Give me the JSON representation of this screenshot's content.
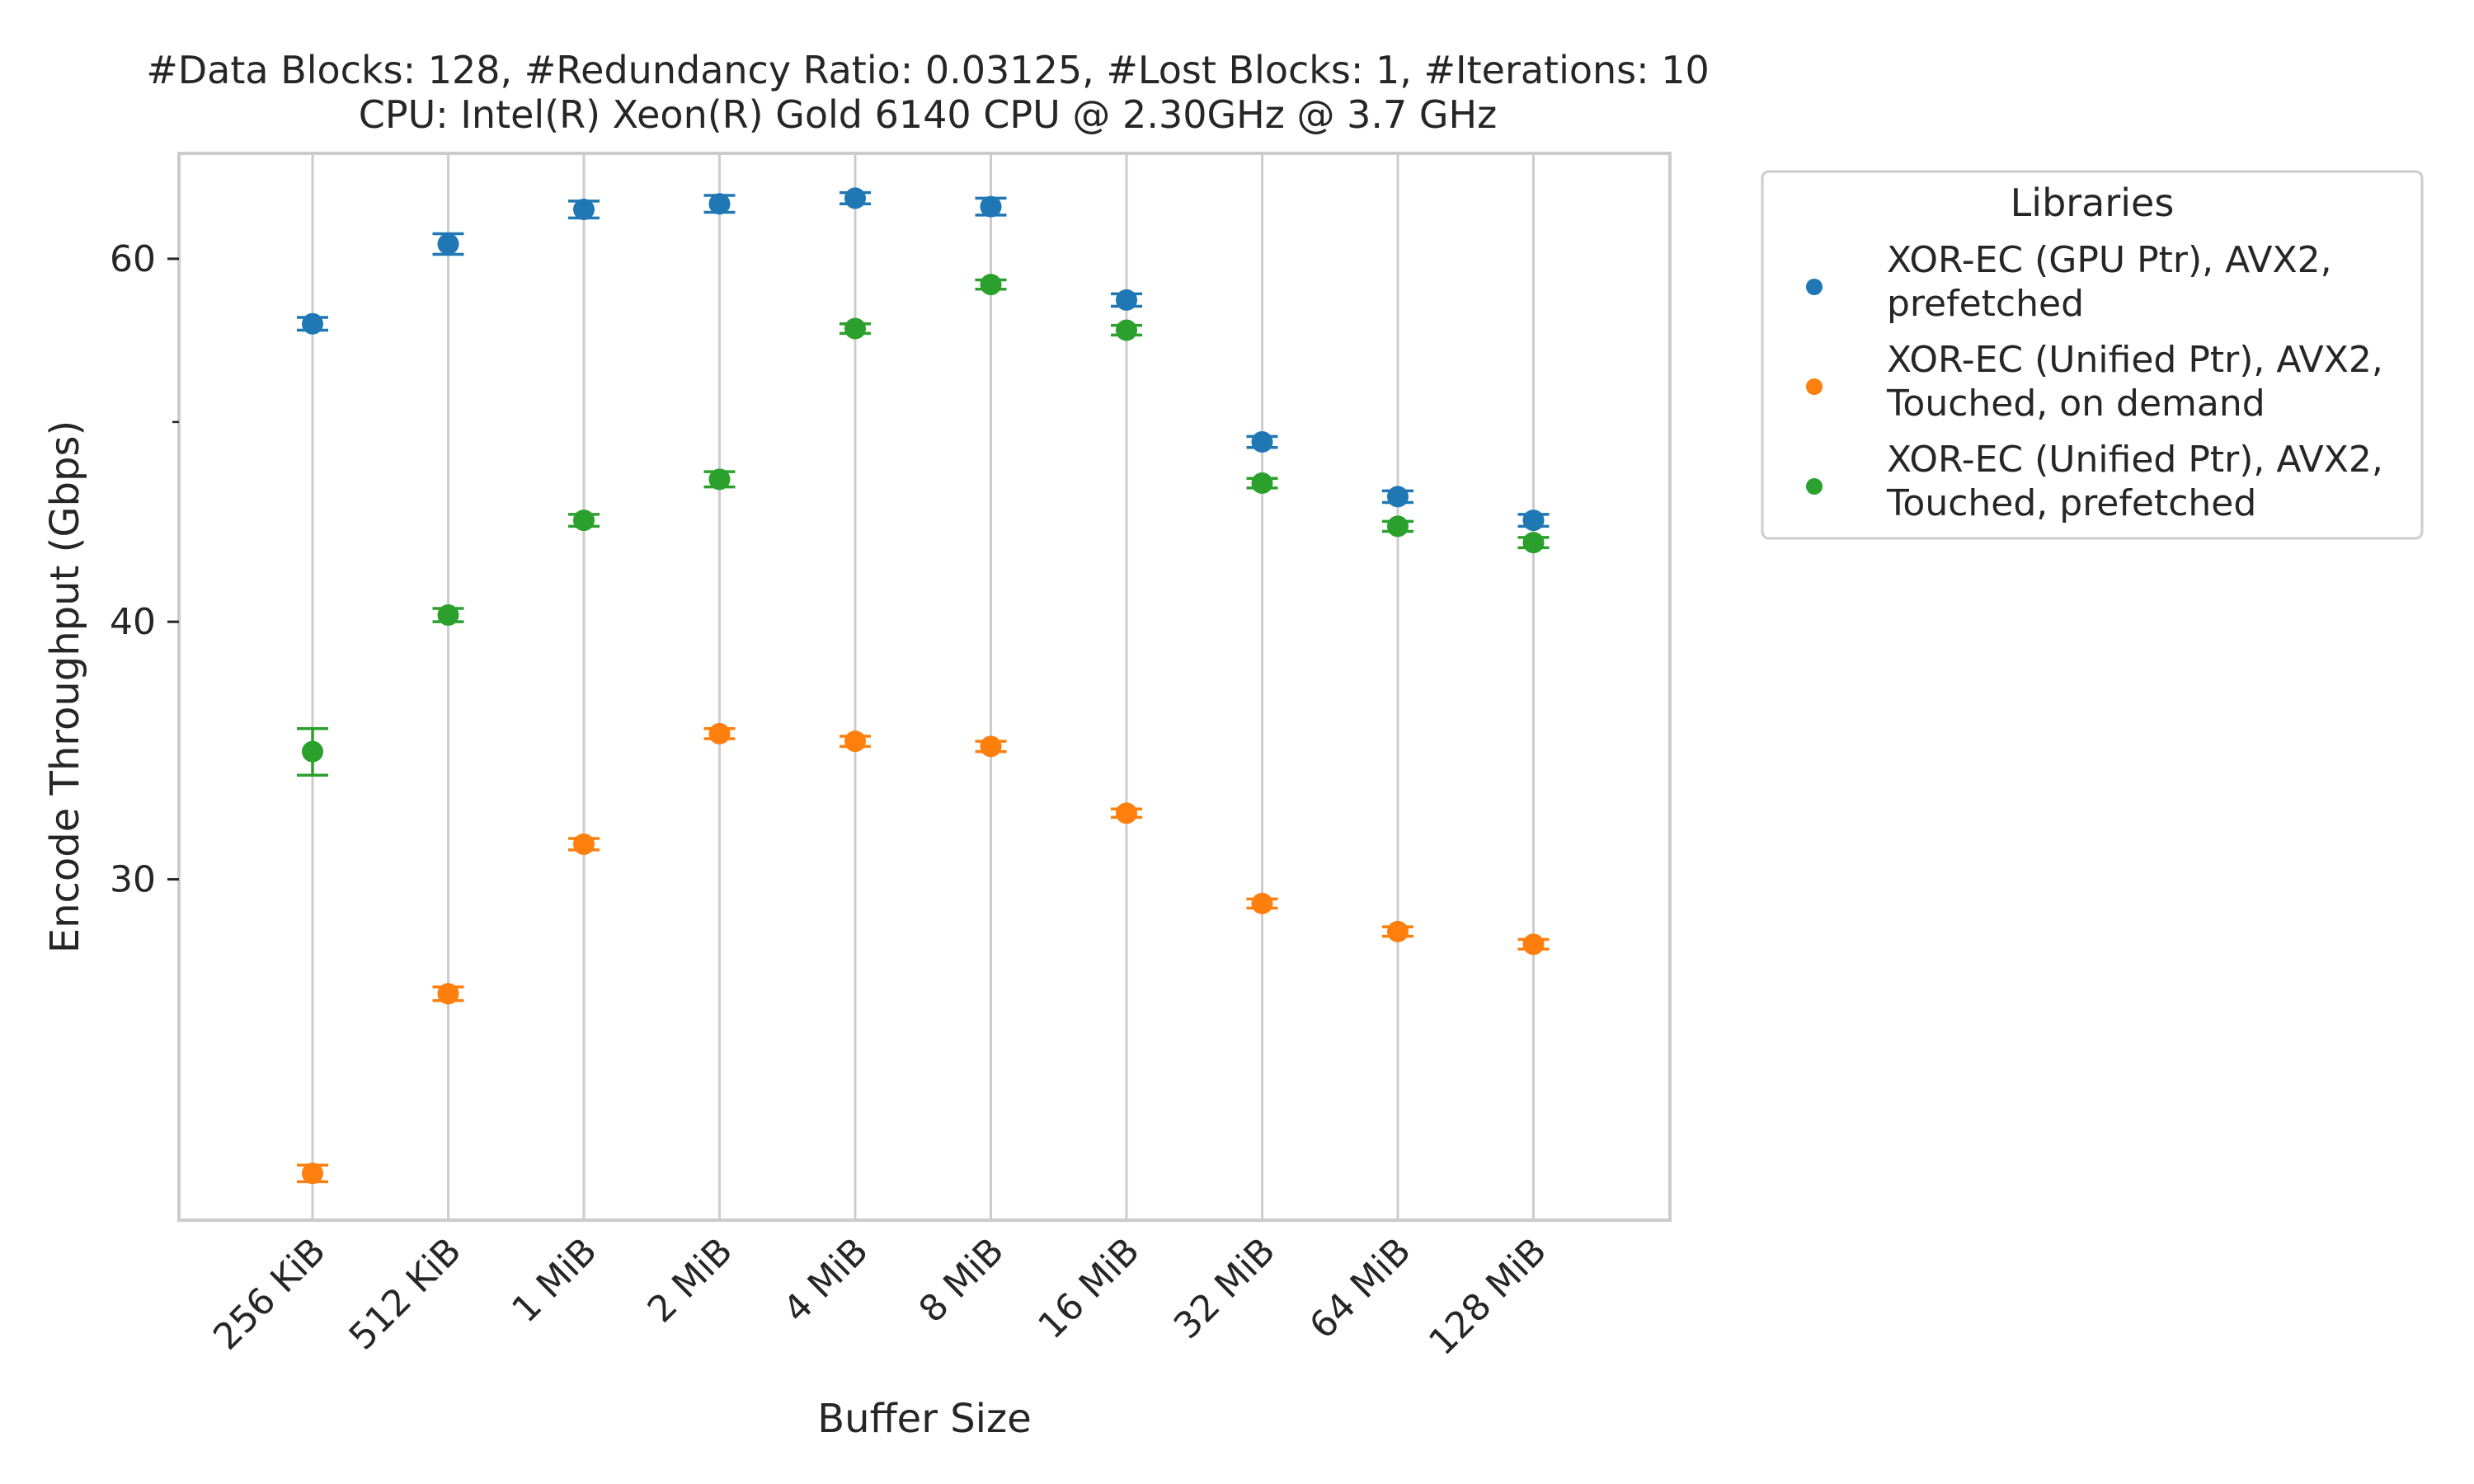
{
  "chart_data": {
    "type": "scatter",
    "title_lines": [
      "#Data Blocks: 128, #Redundancy Ratio: 0.03125, #Lost Blocks: 1, #Iterations: 10",
      "CPU: Intel(R) Xeon(R) Gold 6140 CPU @ 2.30GHz @ 3.7 GHz"
    ],
    "xlabel": "Buffer Size",
    "ylabel": "Encode Throughput (Gbps)",
    "y_scale": "log",
    "ylim": [
      20.5,
      67.5
    ],
    "y_ticks": [
      30,
      40,
      60
    ],
    "y_minor_ticks": [
      50
    ],
    "grid": "vertical",
    "categories": [
      "256 KiB",
      "512 KiB",
      "1 MiB",
      "2 MiB",
      "4 MiB",
      "8 MiB",
      "16 MiB",
      "32 MiB",
      "64 MiB",
      "128 MiB"
    ],
    "legend": {
      "title": "Libraries",
      "placement": "outside-right"
    },
    "series": [
      {
        "name": "XOR-EC (GPU Ptr), AVX2, prefetched",
        "color": "#1f77b4",
        "values": [
          55.8,
          61.0,
          63.4,
          63.8,
          64.2,
          63.6,
          57.3,
          48.9,
          46.0,
          44.8
        ],
        "errors": [
          0.4,
          0.7,
          0.6,
          0.6,
          0.4,
          0.6,
          0.4,
          0.3,
          0.3,
          0.3
        ]
      },
      {
        "name": "XOR-EC (Unified Ptr), AVX2, Touched, on demand",
        "color": "#ff7f0e",
        "values": [
          21.6,
          26.4,
          31.2,
          35.3,
          35.0,
          34.8,
          32.3,
          29.2,
          28.3,
          27.9
        ],
        "errors": [
          0.2,
          0.2,
          0.2,
          0.2,
          0.2,
          0.2,
          0.15,
          0.15,
          0.15,
          0.15
        ]
      },
      {
        "name": "XOR-EC (Unified Ptr), AVX2, Touched, prefetched",
        "color": "#2ca02c",
        "values": [
          34.6,
          40.3,
          44.8,
          46.9,
          55.5,
          58.3,
          55.4,
          46.7,
          44.5,
          43.7
        ],
        "errors": [
          0.9,
          0.3,
          0.3,
          0.4,
          0.3,
          0.3,
          0.3,
          0.25,
          0.25,
          0.25
        ]
      }
    ]
  }
}
